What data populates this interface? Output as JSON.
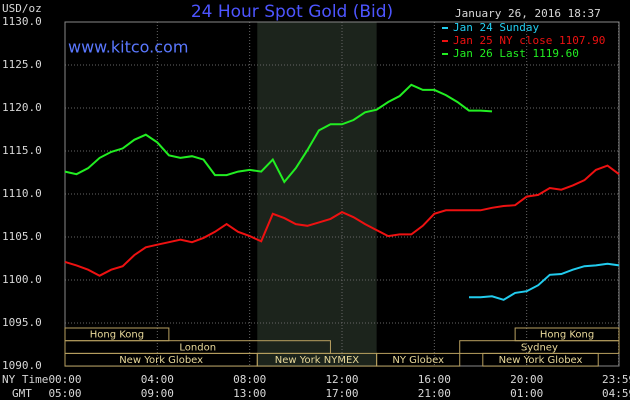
{
  "chart_data": {
    "type": "line",
    "title": "24 Hour Spot Gold (Bid)",
    "site": "www.kitco.com",
    "ylabel": "USD/oz",
    "timestamp": "January 26, 2016 18:37",
    "xlabel": "NY Time",
    "x2label": "GMT",
    "grid": true,
    "background": "#000000",
    "shaded": [
      8.33,
      13.5
    ],
    "x": [
      0,
      0.5,
      1,
      1.5,
      2,
      2.5,
      3,
      3.5,
      4,
      4.5,
      5,
      5.5,
      6,
      6.5,
      7,
      7.5,
      8,
      8.5,
      9,
      9.5,
      10,
      10.5,
      11,
      11.5,
      12,
      12.5,
      13,
      13.5,
      14,
      14.5,
      15,
      15.5,
      16,
      16.5,
      17,
      17.5,
      18,
      18.5,
      19,
      19.5,
      20,
      20.5,
      21,
      21.5,
      22,
      22.5,
      23,
      23.5,
      24
    ],
    "xlim": [
      0,
      24
    ],
    "xticks": [
      {
        "value": 0,
        "label": "00:00"
      },
      {
        "value": 4,
        "label": "04:00"
      },
      {
        "value": 8,
        "label": "08:00"
      },
      {
        "value": 12,
        "label": "12:00"
      },
      {
        "value": 16,
        "label": "16:00"
      },
      {
        "value": 20,
        "label": "20:00"
      },
      {
        "value": 23.983,
        "label": "23:59"
      }
    ],
    "x2ticks": [
      {
        "value": 0,
        "label": "05:00"
      },
      {
        "value": 4,
        "label": "09:00"
      },
      {
        "value": 8,
        "label": "13:00"
      },
      {
        "value": 12,
        "label": "17:00"
      },
      {
        "value": 16,
        "label": "21:00"
      },
      {
        "value": 20,
        "label": "01:00"
      },
      {
        "value": 23.983,
        "label": "04:59"
      }
    ],
    "ylim": [
      1090,
      1130
    ],
    "yticks": [
      {
        "value": 1090,
        "label": "1090.0"
      },
      {
        "value": 1095,
        "label": "1095.0"
      },
      {
        "value": 1100,
        "label": "1100.0"
      },
      {
        "value": 1105,
        "label": "1105.0"
      },
      {
        "value": 1110,
        "label": "1110.0"
      },
      {
        "value": 1115,
        "label": "1115.0"
      },
      {
        "value": 1120,
        "label": "1120.0"
      },
      {
        "value": 1125,
        "label": "1125.0"
      },
      {
        "value": 1130,
        "label": "1130.0"
      }
    ],
    "series": [
      {
        "name": "Jan 24 Sunday",
        "color": "#22ccee",
        "values": [
          null,
          null,
          null,
          null,
          null,
          null,
          null,
          null,
          null,
          null,
          null,
          null,
          null,
          null,
          null,
          null,
          null,
          null,
          null,
          null,
          null,
          null,
          null,
          null,
          null,
          null,
          null,
          null,
          null,
          null,
          null,
          null,
          null,
          null,
          null,
          1098.0,
          1098.0,
          1098.1,
          1097.7,
          1098.5,
          1098.7,
          1099.4,
          1100.6,
          1100.7,
          1101.2,
          1101.6,
          1101.7,
          1101.9,
          1101.7
        ]
      },
      {
        "name": "Jan 25 NY close 1107.90",
        "color": "#ee1111",
        "values": [
          1102.1,
          1101.7,
          1101.2,
          1100.5,
          1101.2,
          1101.6,
          1102.9,
          1103.8,
          1104.1,
          1104.4,
          1104.7,
          1104.4,
          1104.9,
          1105.6,
          1106.5,
          1105.6,
          1105.1,
          1104.5,
          1107.7,
          1107.2,
          1106.5,
          1106.3,
          1106.7,
          1107.1,
          1107.9,
          1107.3,
          1106.5,
          1105.8,
          1105.1,
          1105.3,
          1105.3,
          1106.3,
          1107.7,
          1108.1,
          1108.1,
          1108.1,
          1108.1,
          1108.4,
          1108.6,
          1108.7,
          1109.7,
          1109.9,
          1110.7,
          1110.5,
          1111.0,
          1111.6,
          1112.8,
          1113.3,
          1112.3
        ]
      },
      {
        "name": "Jan 26 Last 1119.60",
        "color": "#22ee22",
        "values": [
          1112.6,
          1112.3,
          1113.0,
          1114.2,
          1114.9,
          1115.3,
          1116.3,
          1116.9,
          1116.0,
          1114.5,
          1114.2,
          1114.4,
          1114.0,
          1112.2,
          1112.2,
          1112.6,
          1112.8,
          1112.6,
          1114.0,
          1111.4,
          1113.0,
          1115.1,
          1117.4,
          1118.1,
          1118.1,
          1118.6,
          1119.5,
          1119.8,
          1120.7,
          1121.4,
          1122.7,
          1122.1,
          1122.1,
          1121.5,
          1120.7,
          1119.7,
          1119.7,
          1119.6,
          null,
          null,
          null,
          null,
          null,
          null,
          null,
          null,
          null,
          null,
          null
        ]
      }
    ],
    "sessions": [
      [
        {
          "label": "Hong Kong",
          "start": 0,
          "end": 4.5
        },
        {
          "label": "Hong Kong",
          "start": 19.5,
          "end": 24
        }
      ],
      [
        {
          "label": "London",
          "start": 0,
          "end": 11.5
        },
        {
          "label": "Sydney",
          "start": 17.1,
          "end": 24
        }
      ],
      [
        {
          "label": "New York Globex",
          "start": 0,
          "end": 8.33
        },
        {
          "label": "New York NYMEX",
          "start": 8.33,
          "end": 13.5
        },
        {
          "label": "NY Globex",
          "start": 13.5,
          "end": 17.1
        },
        {
          "label": "New York Globex",
          "start": 18.1,
          "end": 23.1
        }
      ]
    ]
  }
}
